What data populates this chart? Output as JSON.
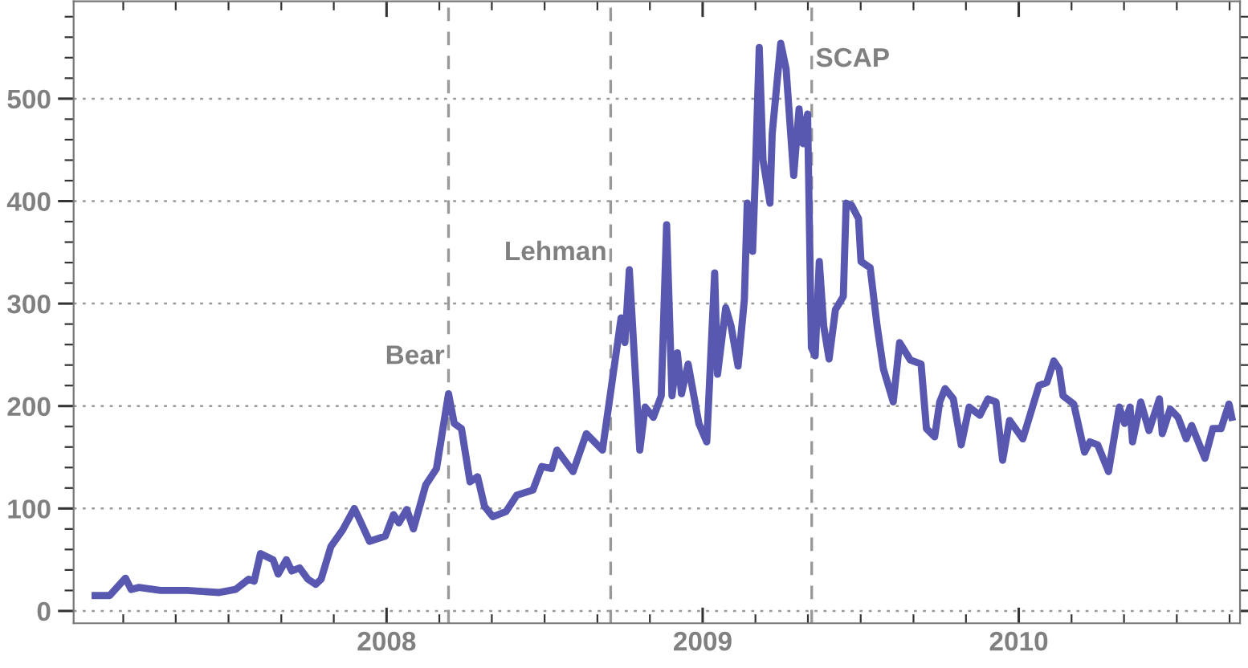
{
  "chart_data": {
    "type": "line",
    "x": [
      2007.078,
      2007.124,
      2007.174,
      2007.192,
      2007.217,
      2007.285,
      2007.37,
      2007.471,
      2007.522,
      2007.564,
      2007.581,
      2007.601,
      2007.641,
      2007.657,
      2007.683,
      2007.7,
      2007.725,
      2007.751,
      2007.776,
      2007.793,
      2007.824,
      2007.861,
      2007.898,
      2007.915,
      2007.946,
      2007.996,
      2008.022,
      2008.039,
      2008.064,
      2008.085,
      2008.124,
      2008.158,
      2008.196,
      2008.214,
      2008.237,
      2008.264,
      2008.288,
      2008.31,
      2008.336,
      2008.378,
      2008.412,
      2008.463,
      2008.491,
      2008.522,
      2008.539,
      2008.59,
      2008.632,
      2008.683,
      2008.742,
      2008.754,
      2008.768,
      2008.801,
      2008.818,
      2008.844,
      2008.869,
      2008.886,
      2008.903,
      2008.92,
      2008.933,
      2008.954,
      2008.988,
      2009.013,
      2009.038,
      2009.047,
      2009.073,
      2009.09,
      2009.112,
      2009.132,
      2009.141,
      2009.158,
      2009.166,
      2009.179,
      2009.191,
      2009.213,
      2009.22,
      2009.247,
      2009.264,
      2009.288,
      2009.305,
      2009.318,
      2009.332,
      2009.344,
      2009.356,
      2009.369,
      2009.383,
      2009.4,
      2009.42,
      2009.445,
      2009.454,
      2009.471,
      2009.493,
      2009.501,
      2009.53,
      2009.552,
      2009.572,
      2009.603,
      2009.623,
      2009.657,
      2009.691,
      2009.708,
      2009.734,
      2009.75,
      2009.767,
      2009.793,
      2009.818,
      2009.843,
      2009.877,
      2009.903,
      2009.928,
      2009.949,
      2009.971,
      2010.013,
      2010.064,
      2010.089,
      2010.111,
      2010.128,
      2010.14,
      2010.174,
      2010.208,
      2010.225,
      2010.25,
      2010.284,
      2010.318,
      2010.335,
      2010.352,
      2010.36,
      2010.386,
      2010.412,
      2010.445,
      2010.454,
      2010.479,
      2010.504,
      2010.53,
      2010.547,
      2010.589,
      2010.614,
      2010.64,
      2010.665,
      2010.674
    ],
    "series": [
      {
        "color": "#5858b0",
        "values": [
          15,
          15,
          32,
          21,
          23,
          20,
          20,
          18,
          21,
          31,
          29,
          56,
          50,
          36,
          50,
          39,
          42,
          31,
          26,
          31,
          63,
          79,
          100,
          89,
          68,
          73,
          94,
          86,
          99,
          80,
          123,
          139,
          212,
          183,
          178,
          126,
          131,
          102,
          92,
          97,
          113,
          118,
          141,
          139,
          157,
          136,
          173,
          157,
          286,
          262,
          333,
          157,
          199,
          189,
          210,
          377,
          210,
          252,
          212,
          241,
          183,
          165,
          330,
          231,
          296,
          278,
          239,
          304,
          398,
          351,
          419,
          550,
          440,
          398,
          466,
          554,
          529,
          425,
          490,
          456,
          485,
          257,
          249,
          341,
          278,
          246,
          294,
          307,
          398,
          396,
          383,
          341,
          335,
          278,
          236,
          204,
          262,
          245,
          241,
          178,
          170,
          204,
          217,
          207,
          162,
          199,
          191,
          207,
          204,
          147,
          186,
          168,
          220,
          223,
          244,
          236,
          210,
          202,
          155,
          165,
          162,
          136,
          199,
          183,
          199,
          165,
          204,
          176,
          207,
          173,
          197,
          189,
          168,
          181,
          149,
          178,
          178,
          202,
          189
        ]
      }
    ],
    "xlim": [
      2007.01,
      2010.7
    ],
    "xticks": [
      {
        "value": 2007.167,
        "label": null
      },
      {
        "value": 2007.333,
        "label": null
      },
      {
        "value": 2007.5,
        "label": null
      },
      {
        "value": 2007.667,
        "label": null
      },
      {
        "value": 2007.833,
        "label": null
      },
      2008,
      {
        "value": 2008.167,
        "label": null
      },
      {
        "value": 2008.333,
        "label": null
      },
      {
        "value": 2008.5,
        "label": null
      },
      {
        "value": 2008.667,
        "label": null
      },
      {
        "value": 2008.833,
        "label": null
      },
      2009,
      {
        "value": 2009.167,
        "label": null
      },
      {
        "value": 2009.333,
        "label": null
      },
      {
        "value": 2009.5,
        "label": null
      },
      {
        "value": 2009.667,
        "label": null
      },
      {
        "value": 2009.833,
        "label": null
      },
      2010,
      {
        "value": 2010.167,
        "label": null
      },
      {
        "value": 2010.333,
        "label": null
      },
      {
        "value": 2010.5,
        "label": null
      },
      {
        "value": 2010.667,
        "label": null
      }
    ],
    "ylim": [
      -12,
      595
    ],
    "yticks": [
      0,
      {
        "value": 20,
        "label": null
      },
      {
        "value": 40,
        "label": null
      },
      {
        "value": 60,
        "label": null
      },
      {
        "value": 80,
        "label": null
      },
      100,
      {
        "value": 120,
        "label": null
      },
      {
        "value": 140,
        "label": null
      },
      {
        "value": 160,
        "label": null
      },
      {
        "value": 180,
        "label": null
      },
      200,
      {
        "value": 220,
        "label": null
      },
      {
        "value": 240,
        "label": null
      },
      {
        "value": 260,
        "label": null
      },
      {
        "value": 280,
        "label": null
      },
      300,
      {
        "value": 320,
        "label": null
      },
      {
        "value": 340,
        "label": null
      },
      {
        "value": 360,
        "label": null
      },
      {
        "value": 380,
        "label": null
      },
      400,
      {
        "value": 420,
        "label": null
      },
      {
        "value": 440,
        "label": null
      },
      {
        "value": 460,
        "label": null
      },
      {
        "value": 480,
        "label": null
      },
      500,
      {
        "value": 520,
        "label": null
      },
      {
        "value": 540,
        "label": null
      },
      {
        "value": 560,
        "label": null
      },
      {
        "value": 580,
        "label": null
      }
    ],
    "grid": "y",
    "line_style": "solid",
    "marker": "none",
    "ref_lines": [
      {
        "axis": "x",
        "value": 2008.196,
        "label": "Bear",
        "color": "#999999",
        "line_style": "dashed"
      },
      {
        "axis": "x",
        "value": 2008.709,
        "label": "Lehman",
        "color": "#999999",
        "line_style": "dashed"
      },
      {
        "axis": "x",
        "value": 2009.345,
        "label": "SCAP",
        "color": "#999999",
        "line_style": "dashed"
      }
    ]
  }
}
